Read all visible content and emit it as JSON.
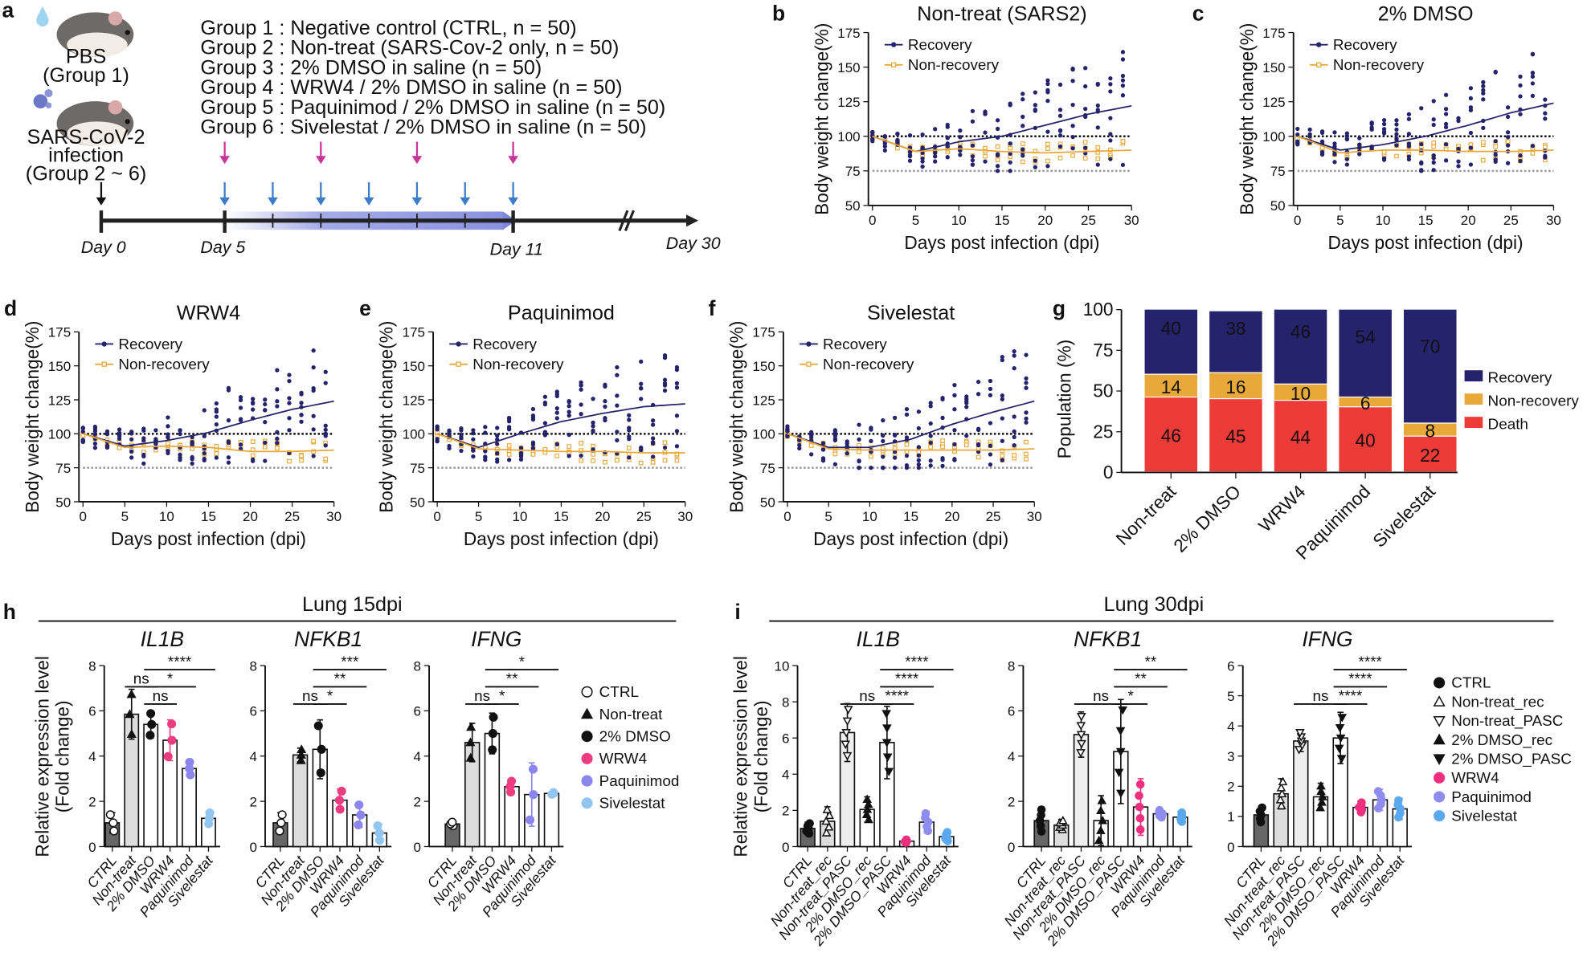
{
  "panel_a": {
    "letter": "a",
    "pbs_label": "PBS",
    "pbs_group": "(Group 1)",
    "infection_label_1": "SARS-CoV-2",
    "infection_label_2": "infection",
    "infection_group": "(Group 2 ~ 6)",
    "groups": [
      {
        "text": "Group 1 : Negative control (CTRL, n = 50)",
        "color": "#111111"
      },
      {
        "text": "Group 2 : Non-treat (SARS-Cov-2 only, n = 50)",
        "color": "#111111"
      },
      {
        "text": "Group 3 : 2% DMSO in saline (n = 50)",
        "color": "#3d7cc9"
      },
      {
        "text": "Group 4 : WRW4 / 2% DMSO in saline (n = 50)",
        "color": "#c8359a"
      },
      {
        "text": "Group 5 : Paquinimod / 2% DMSO in saline (n = 50)",
        "color": "#3d7cc9"
      },
      {
        "text": "Group 6 : Sivelestat  / 2% DMSO in saline (n = 50)",
        "color": "#3d7cc9"
      }
    ],
    "timeline": {
      "day_labels": [
        "Day 0",
        "Day 5",
        "Day 11",
        "Day 30"
      ],
      "pink_arrow_days": [
        5,
        7,
        9,
        11
      ],
      "blue_arrow_days": [
        5,
        6,
        7,
        8,
        9,
        10,
        11
      ],
      "pink_color": "#c8359a",
      "blue_color": "#3d7cc9"
    }
  },
  "chart_data": [
    {
      "panel": "b",
      "type": "scatter",
      "title": "Non-treat (SARS2)",
      "xlabel": "Days post infection (dpi)",
      "ylabel": "Body weight change(%)",
      "xlim": [
        0,
        30
      ],
      "ylim": [
        50,
        175
      ],
      "xticks": [
        "0",
        "5",
        "10",
        "15",
        "20",
        "25",
        "30"
      ],
      "yticks": [
        "50",
        "75",
        "100",
        "125",
        "150",
        "175"
      ],
      "reference_lines": [
        100,
        75
      ],
      "legend": "top-left",
      "series": [
        {
          "name": "Recovery",
          "color": "#25236b",
          "x": [
            0,
            5,
            10,
            15,
            20,
            25,
            30
          ],
          "y": [
            100,
            89,
            96,
            100,
            108,
            116,
            122
          ]
        },
        {
          "name": "Non-recovery",
          "color": "#e8a83a",
          "x": [
            0,
            5,
            10,
            15,
            20,
            25,
            30
          ],
          "y": [
            100,
            89,
            91,
            89,
            88,
            89,
            90
          ]
        }
      ]
    },
    {
      "panel": "c",
      "type": "scatter",
      "title": "2% DMSO",
      "xlabel": "Days post infection (dpi)",
      "ylabel": "Body weight change(%)",
      "xlim": [
        0,
        30
      ],
      "ylim": [
        50,
        175
      ],
      "xticks": [
        "0",
        "5",
        "10",
        "15",
        "20",
        "25",
        "30"
      ],
      "yticks": [
        "50",
        "75",
        "100",
        "125",
        "150",
        "175"
      ],
      "reference_lines": [
        100,
        75
      ],
      "legend": "top-left",
      "series": [
        {
          "name": "Recovery",
          "color": "#25236b",
          "x": [
            0,
            5,
            10,
            15,
            20,
            25,
            30
          ],
          "y": [
            100,
            90,
            94,
            100,
            108,
            117,
            124
          ]
        },
        {
          "name": "Non-recovery",
          "color": "#e8a83a",
          "x": [
            0,
            5,
            10,
            15,
            20,
            25,
            30
          ],
          "y": [
            100,
            88,
            90,
            90,
            89,
            89,
            90
          ]
        }
      ]
    },
    {
      "panel": "d",
      "type": "scatter",
      "title": "WRW4",
      "xlabel": "Days post infection (dpi)",
      "ylabel": "Body weight change(%)",
      "xlim": [
        0,
        30
      ],
      "ylim": [
        50,
        175
      ],
      "xticks": [
        "0",
        "5",
        "10",
        "15",
        "20",
        "25",
        "30"
      ],
      "yticks": [
        "50",
        "75",
        "100",
        "125",
        "150",
        "175"
      ],
      "reference_lines": [
        100,
        75
      ],
      "legend": "top-left",
      "series": [
        {
          "name": "Recovery",
          "color": "#25236b",
          "x": [
            0,
            5,
            10,
            15,
            20,
            25,
            30
          ],
          "y": [
            100,
            91,
            95,
            101,
            110,
            118,
            124
          ]
        },
        {
          "name": "Non-recovery",
          "color": "#e8a83a",
          "x": [
            0,
            5,
            10,
            15,
            20,
            25,
            30
          ],
          "y": [
            100,
            90,
            91,
            90,
            87,
            87,
            88
          ]
        }
      ]
    },
    {
      "panel": "e",
      "type": "scatter",
      "title": "Paquinimod",
      "xlabel": "Days post infection (dpi)",
      "ylabel": "Body weight change(%)",
      "xlim": [
        0,
        30
      ],
      "ylim": [
        50,
        175
      ],
      "xticks": [
        "0",
        "5",
        "10",
        "15",
        "20",
        "25",
        "30"
      ],
      "yticks": [
        "50",
        "75",
        "100",
        "125",
        "150",
        "175"
      ],
      "reference_lines": [
        100,
        75
      ],
      "legend": "top-left",
      "series": [
        {
          "name": "Recovery",
          "color": "#25236b",
          "x": [
            0,
            5,
            10,
            15,
            20,
            25,
            30
          ],
          "y": [
            100,
            90,
            100,
            109,
            115,
            120,
            122
          ]
        },
        {
          "name": "Non-recovery",
          "color": "#e8a83a",
          "x": [
            0,
            5,
            10,
            15,
            20,
            25,
            30
          ],
          "y": [
            100,
            89,
            88,
            87,
            87,
            86,
            86
          ]
        }
      ]
    },
    {
      "panel": "f",
      "type": "scatter",
      "title": "Sivelestat",
      "xlabel": "Days post infection (dpi)",
      "ylabel": "Body weight change(%)",
      "xlim": [
        0,
        30
      ],
      "ylim": [
        50,
        175
      ],
      "xticks": [
        "0",
        "5",
        "10",
        "15",
        "20",
        "25",
        "30"
      ],
      "yticks": [
        "50",
        "75",
        "100",
        "125",
        "150",
        "175"
      ],
      "reference_lines": [
        100,
        75
      ],
      "legend": "top-left",
      "series": [
        {
          "name": "Recovery",
          "color": "#25236b",
          "x": [
            0,
            5,
            10,
            15,
            20,
            25,
            30
          ],
          "y": [
            100,
            90,
            90,
            96,
            107,
            116,
            124
          ]
        },
        {
          "name": "Non-recovery",
          "color": "#e8a83a",
          "x": [
            0,
            5,
            10,
            15,
            20,
            25,
            30
          ],
          "y": [
            100,
            89,
            88,
            88,
            88,
            88,
            89
          ]
        }
      ]
    },
    {
      "panel": "g",
      "type": "bar",
      "stacked": true,
      "ylabel": "Population (%)",
      "ylim": [
        0,
        100
      ],
      "yticks": [
        "0",
        "25",
        "50",
        "75",
        "100"
      ],
      "categories": [
        "Non-treat",
        "2% DMSO",
        "WRW4",
        "Paquinimod",
        "Sivelestat"
      ],
      "legend": "right",
      "series": [
        {
          "name": "Death",
          "color": "#ee3b38",
          "values": [
            46,
            45,
            44,
            40,
            22
          ]
        },
        {
          "name": "Non-recovery",
          "color": "#e8a83a",
          "values": [
            14,
            16,
            10,
            6,
            8
          ]
        },
        {
          "name": "Recovery",
          "color": "#25236b",
          "values": [
            40,
            38,
            46,
            54,
            70
          ]
        }
      ],
      "legend_order": [
        "Recovery",
        "Non-recovery",
        "Death"
      ]
    },
    {
      "panel": "h",
      "type": "bar",
      "title": "Lung 15dpi",
      "ylabel_1": "Relative expression level",
      "ylabel_2": "(Fold change)",
      "categories": [
        "CTRL",
        "Non-treat",
        "2% DMSO",
        "WRW4",
        "Paquinimod",
        "Sivelestat"
      ],
      "legend": [
        {
          "name": "CTRL",
          "color": "#111111",
          "marker": "open-circle"
        },
        {
          "name": "Non-treat",
          "color": "#111111",
          "marker": "filled-triangle-up"
        },
        {
          "name": "2% DMSO",
          "color": "#111111",
          "marker": "filled-circle"
        },
        {
          "name": "WRW4",
          "color": "#ee3c82",
          "marker": "filled-circle"
        },
        {
          "name": "Paquinimod",
          "color": "#8a86ee",
          "marker": "filled-circle"
        },
        {
          "name": "Sivelestat",
          "color": "#92c6f0",
          "marker": "filled-circle"
        }
      ],
      "bar_fills": [
        "#666666",
        "#dddddd",
        "#ffffff",
        "#ffffff",
        "#ffffff",
        "#ffffff"
      ],
      "genes": [
        {
          "name": "IL1B",
          "ylim": [
            0,
            8
          ],
          "yticks": [
            "0",
            "2",
            "4",
            "6",
            "8"
          ],
          "means": [
            1.05,
            5.85,
            5.4,
            4.7,
            3.45,
            1.25
          ],
          "sd": [
            0.45,
            1.1,
            0.6,
            0.9,
            0.35,
            0.3
          ],
          "stats": [
            {
              "from": 2,
              "to": 5,
              "label": "****",
              "level": 3
            },
            {
              "from": 1,
              "to": 2,
              "label": "ns",
              "level": 2
            },
            {
              "from": 2,
              "to": 4,
              "label": "*",
              "level": 2
            },
            {
              "from": 2,
              "to": 3,
              "label": "ns",
              "level": 1
            }
          ]
        },
        {
          "name": "NFKB1",
          "ylim": [
            0,
            8
          ],
          "yticks": [
            "0",
            "2",
            "4",
            "6",
            "8"
          ],
          "means": [
            1.05,
            4.05,
            4.3,
            2.05,
            1.4,
            0.6
          ],
          "sd": [
            0.45,
            0.3,
            1.3,
            0.5,
            0.55,
            0.4
          ],
          "stats": [
            {
              "from": 2,
              "to": 5,
              "label": "***",
              "level": 3
            },
            {
              "from": 2,
              "to": 4,
              "label": "**",
              "level": 2
            },
            {
              "from": 1,
              "to": 2,
              "label": "ns",
              "level": 1
            },
            {
              "from": 2,
              "to": 3,
              "label": "*",
              "level": 1
            }
          ]
        },
        {
          "name": "IFNG",
          "ylim": [
            0,
            8
          ],
          "yticks": [
            "0",
            "2",
            "4",
            "6",
            "8"
          ],
          "means": [
            1.0,
            4.6,
            5.0,
            2.65,
            2.3,
            2.35
          ],
          "sd": [
            0.1,
            0.85,
            0.9,
            0.3,
            1.4,
            0.05
          ],
          "stats": [
            {
              "from": 2,
              "to": 5,
              "label": "*",
              "level": 3
            },
            {
              "from": 2,
              "to": 4,
              "label": "**",
              "level": 2
            },
            {
              "from": 1,
              "to": 2,
              "label": "ns",
              "level": 1
            },
            {
              "from": 2,
              "to": 3,
              "label": "*",
              "level": 1
            }
          ]
        }
      ]
    },
    {
      "panel": "i",
      "type": "bar",
      "title": "Lung 30dpi",
      "ylabel_1": "Relative expression level",
      "ylabel_2": "(Fold change)",
      "categories": [
        "CTRL",
        "Non-treat_rec",
        "Non-treat_PASC",
        "2% DMSO_rec",
        "2% DMSO_PASC",
        "WRW4",
        "Paquinimod",
        "Sivelestat"
      ],
      "legend": [
        {
          "name": "CTRL",
          "color": "#111111",
          "marker": "filled-circle"
        },
        {
          "name": "Non-treat_rec",
          "color": "#111111",
          "marker": "open-triangle-up"
        },
        {
          "name": "Non-treat_PASC",
          "color": "#111111",
          "marker": "open-triangle-down"
        },
        {
          "name": "2% DMSO_rec",
          "color": "#111111",
          "marker": "filled-triangle-up"
        },
        {
          "name": "2% DMSO_PASC",
          "color": "#111111",
          "marker": "filled-triangle-down"
        },
        {
          "name": "WRW4",
          "color": "#f0307f",
          "marker": "filled-circle"
        },
        {
          "name": "Paquinimod",
          "color": "#8f8cf0",
          "marker": "filled-circle"
        },
        {
          "name": "Sivelestat",
          "color": "#5aa8ef",
          "marker": "filled-circle"
        }
      ],
      "bar_fills": [
        "#666666",
        "#dddddd",
        "#eeeeee",
        "#ffffff",
        "#ffffff",
        "#ffffff",
        "#ffffff",
        "#ffffff"
      ],
      "genes": [
        {
          "name": "IL1B",
          "ylim": [
            0,
            10
          ],
          "yticks": [
            "0",
            "2",
            "4",
            "6",
            "8",
            "10"
          ],
          "means": [
            1.0,
            1.4,
            6.3,
            2.05,
            5.75,
            0.3,
            1.35,
            0.55
          ],
          "sd": [
            0.35,
            0.8,
            1.6,
            0.7,
            2.0,
            0.1,
            0.6,
            0.3
          ],
          "stats": [
            {
              "from": 4,
              "to": 7,
              "label": "****",
              "level": 4
            },
            {
              "from": 4,
              "to": 6,
              "label": "****",
              "level": 3
            },
            {
              "from": 2,
              "to": 4,
              "label": "ns",
              "level": 2
            },
            {
              "from": 4,
              "to": 5,
              "label": "****",
              "level": 2
            }
          ]
        },
        {
          "name": "NFKB1",
          "ylim": [
            0,
            8
          ],
          "yticks": [
            "0",
            "2",
            "4",
            "6",
            "8"
          ],
          "means": [
            1.15,
            0.95,
            4.95,
            1.15,
            4.2,
            1.75,
            1.45,
            1.3
          ],
          "sd": [
            0.6,
            0.25,
            1.0,
            1.1,
            2.3,
            1.25,
            0.2,
            0.25
          ],
          "stats": [
            {
              "from": 4,
              "to": 7,
              "label": "**",
              "level": 4
            },
            {
              "from": 4,
              "to": 6,
              "label": "**",
              "level": 3
            },
            {
              "from": 2,
              "to": 4,
              "label": "ns",
              "level": 2
            },
            {
              "from": 4,
              "to": 5,
              "label": "*",
              "level": 2
            }
          ]
        },
        {
          "name": "IFNG",
          "ylim": [
            0,
            6
          ],
          "yticks": [
            "0",
            "1",
            "2",
            "3",
            "4",
            "5",
            "6"
          ],
          "means": [
            1.05,
            1.75,
            3.5,
            1.65,
            3.6,
            1.3,
            1.55,
            1.25
          ],
          "sd": [
            0.3,
            0.5,
            0.35,
            0.45,
            0.85,
            0.2,
            0.35,
            0.35
          ],
          "stats": [
            {
              "from": 4,
              "to": 7,
              "label": "****",
              "level": 4
            },
            {
              "from": 4,
              "to": 6,
              "label": "****",
              "level": 3
            },
            {
              "from": 2,
              "to": 4,
              "label": "ns",
              "level": 2
            },
            {
              "from": 4,
              "to": 5,
              "label": "****",
              "level": 2
            }
          ]
        }
      ]
    }
  ]
}
